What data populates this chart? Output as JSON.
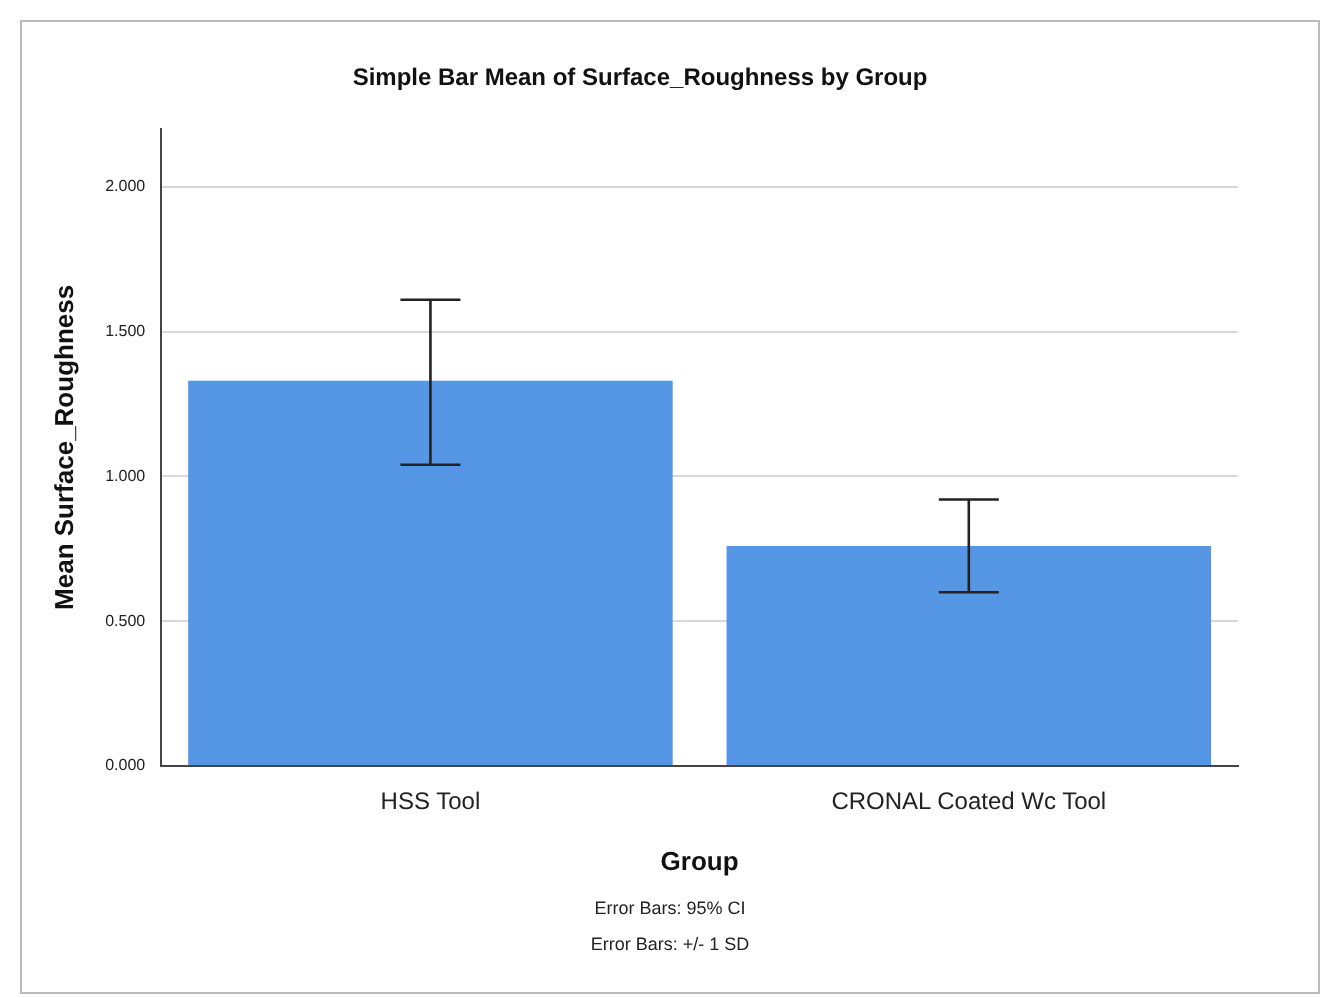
{
  "chart_data": {
    "type": "bar",
    "title": "Simple Bar Mean of Surface_Roughness by Group",
    "xlabel": "Group",
    "ylabel": "Mean Surface_Roughness",
    "categories": [
      "HSS Tool",
      "CRONAL Coated Wc Tool"
    ],
    "values": [
      1.33,
      0.76
    ],
    "errors": [
      [
        1.04,
        1.61
      ],
      [
        0.6,
        0.92
      ]
    ],
    "color": "#5597e5",
    "ylim": [
      0,
      2.2
    ],
    "yticks": [
      {
        "value": 0,
        "label": "0.000"
      },
      {
        "value": 0.5,
        "label": "0.500"
      },
      {
        "value": 1,
        "label": "1.000"
      },
      {
        "value": 1.5,
        "label": "1.500"
      },
      {
        "value": 2,
        "label": "2.000"
      }
    ],
    "grid": "y",
    "annotations": [
      "Error Bars: 95% CI",
      "Error Bars: +/- 1 SD"
    ]
  }
}
